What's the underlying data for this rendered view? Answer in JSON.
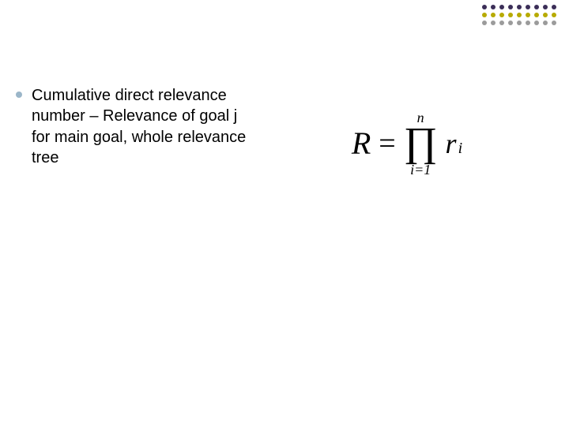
{
  "bullet": {
    "text": "Cumulative direct relevance number – Relevance of goal j for main goal, whole relevance tree"
  },
  "formula": {
    "lhs": "R",
    "equals": "=",
    "product_upper": "n",
    "product_symbol": "∏",
    "product_lower": "i=1",
    "term_base": "r",
    "term_sub": "i"
  },
  "decor": {
    "rows": 3,
    "cols": 9,
    "row_colors": [
      "#3b2e58",
      "#b7aa00",
      "#9b9b9b"
    ]
  },
  "colors": {
    "background": "#ffffff",
    "bullet": "#9bb6c9",
    "text": "#000000"
  }
}
